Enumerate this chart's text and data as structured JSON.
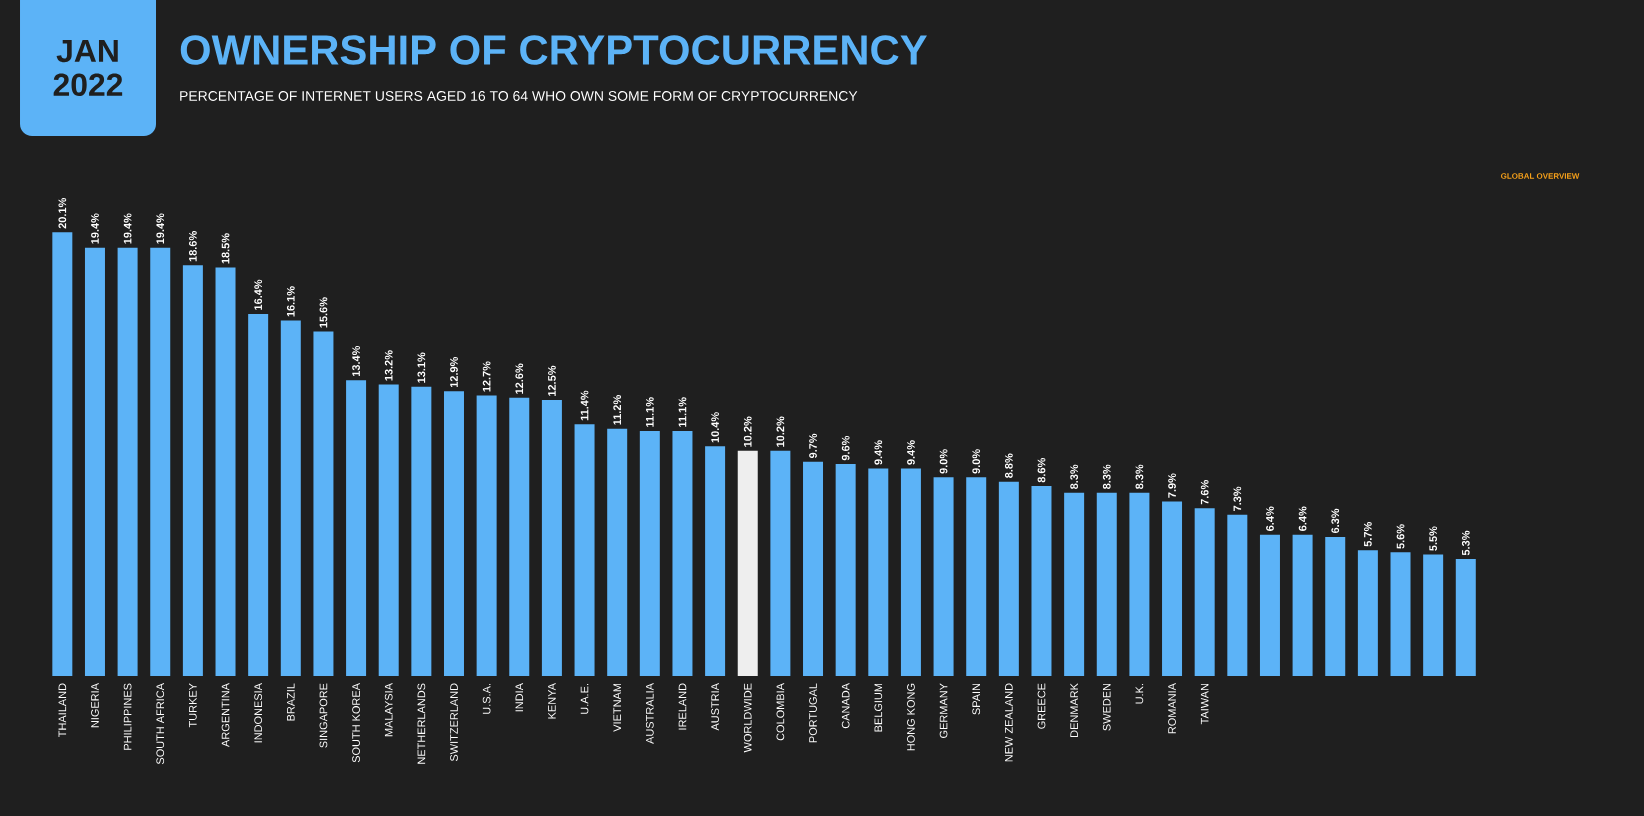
{
  "chart_data": {
    "type": "bar",
    "title": "OWNERSHIP OF CRYPTOCURRENCY",
    "subtitle": "PERCENTAGE OF INTERNET USERS AGED 16 TO 64 WHO OWN SOME FORM OF CRYPTOCURRENCY",
    "annotations": [
      "JAN 2022",
      "GLOBAL OVERVIEW"
    ],
    "categories": [
      "THAILAND",
      "NIGERIA",
      "PHILIPPINES",
      "SOUTH AFRICA",
      "TURKEY",
      "ARGENTINA",
      "INDONESIA",
      "BRAZIL",
      "SINGAPORE",
      "SOUTH KOREA",
      "MALAYSIA",
      "NETHERLANDS",
      "SWITZERLAND",
      "U.S.A.",
      "INDIA",
      "KENYA",
      "U.A.E.",
      "VIETNAM",
      "AUSTRALIA",
      "IRELAND",
      "AUSTRIA",
      "WORLDWIDE",
      "COLOMBIA",
      "PORTUGAL",
      "CANADA",
      "BELGIUM",
      "HONG KONG",
      "GERMANY",
      "SPAIN",
      "NEW ZEALAND",
      "GREECE",
      "DENMARK",
      "SWEDEN",
      "U.K.",
      "ROMANIA",
      "TAIWAN",
      null,
      null,
      null,
      null,
      null,
      null,
      null,
      null,
      null,
      null,
      null
    ],
    "values": [
      20.1,
      19.4,
      19.4,
      19.4,
      18.6,
      18.5,
      16.4,
      16.1,
      15.6,
      13.4,
      13.2,
      13.1,
      12.9,
      12.7,
      12.6,
      12.5,
      11.4,
      11.2,
      11.1,
      11.1,
      10.4,
      10.2,
      10.2,
      9.7,
      9.6,
      9.4,
      9.4,
      9.0,
      9.0,
      8.8,
      8.6,
      8.3,
      8.3,
      8.3,
      7.9,
      7.6,
      7.3,
      6.4,
      6.4,
      6.3,
      5.7,
      5.6,
      5.5,
      5.3,
      null,
      null,
      null
    ],
    "value_labels": [
      "20.1%",
      "19.4%",
      "19.4%",
      "19.4%",
      "18.6%",
      "18.5%",
      "16.4%",
      "16.1%",
      "15.6%",
      "13.4%",
      "13.2%",
      "13.1%",
      "12.9%",
      "12.7%",
      "12.6%",
      "12.5%",
      "11.4%",
      "11.2%",
      "11.1%",
      "11.1%",
      "10.4%",
      "10.2%",
      "10.2%",
      "9.7%",
      "9.6%",
      "9.4%",
      "9.4%",
      "9.0%",
      "9.0%",
      "8.8%",
      "8.6%",
      "8.3%",
      "8.3%",
      "8.3%",
      "7.9%",
      "7.6%",
      "7.3%",
      "6.4%",
      "6.4%",
      "6.3%",
      "5.7%",
      "5.6%",
      "5.5%",
      "5.3%",
      null,
      null,
      null
    ],
    "colors": [
      "#5cb3f7",
      "#5cb3f7",
      "#5cb3f7",
      "#5cb3f7",
      "#5cb3f7",
      "#5cb3f7",
      "#5cb3f7",
      "#5cb3f7",
      "#5cb3f7",
      "#5cb3f7",
      "#5cb3f7",
      "#5cb3f7",
      "#5cb3f7",
      "#5cb3f7",
      "#5cb3f7",
      "#5cb3f7",
      "#5cb3f7",
      "#5cb3f7",
      "#5cb3f7",
      "#5cb3f7",
      "#5cb3f7",
      "#eeeeee",
      "#5cb3f7",
      "#5cb3f7",
      "#5cb3f7",
      "#5cb3f7",
      "#5cb3f7",
      "#5cb3f7",
      "#5cb3f7",
      "#5cb3f7",
      "#5cb3f7",
      "#5cb3f7",
      "#5cb3f7",
      "#5cb3f7",
      "#5cb3f7",
      "#5cb3f7",
      "#5cb3f7",
      "#5cb3f7",
      "#5cb3f7",
      "#5cb3f7",
      "#5cb3f7",
      "#5cb3f7",
      "#5cb3f7",
      "#5cb3f7",
      "#5cb3f7",
      "#5cb3f7",
      "#5cb3f7"
    ]
  }
}
